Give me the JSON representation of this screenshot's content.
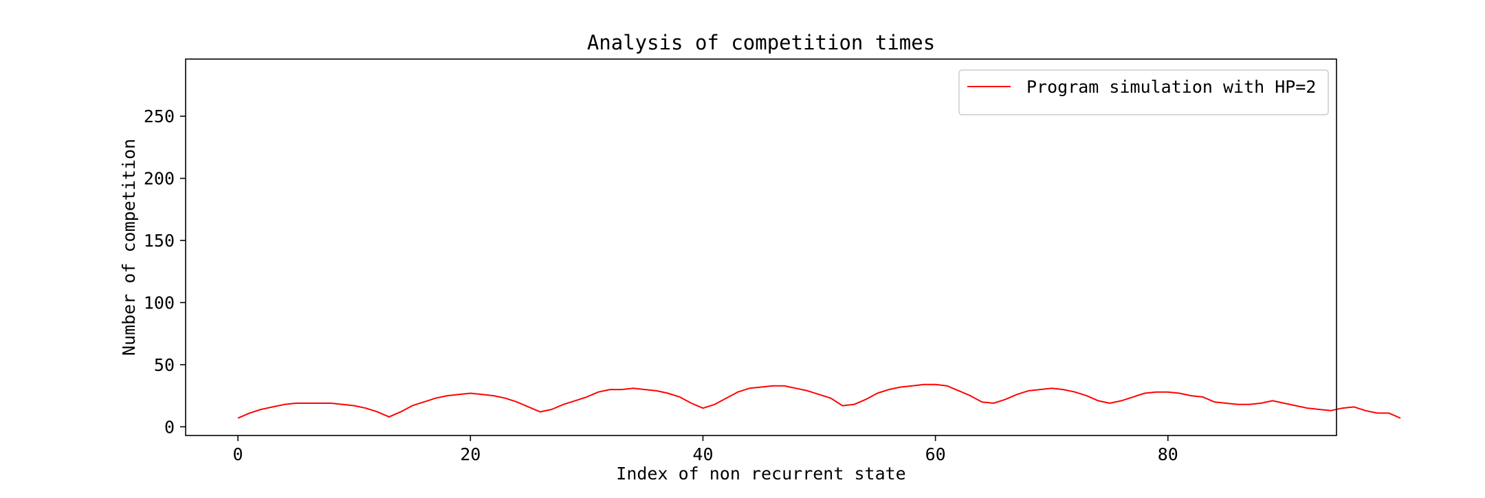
{
  "chart_data": {
    "type": "line",
    "title": "Analysis of competition times",
    "xlabel": "Index of non recurrent state",
    "ylabel": "Number of competition",
    "xlim": [
      -4.5,
      94.5
    ],
    "ylim": [
      -7,
      296
    ],
    "xticks": [
      "0",
      "20",
      "40",
      "60",
      "80"
    ],
    "yticks": [
      "0",
      "50",
      "100",
      "150",
      "200",
      "250"
    ],
    "grid": false,
    "legend_position": "upper-right",
    "series": [
      {
        "name": "Program simulation with HP=2",
        "color": "#ff0000",
        "values": [
          7,
          11,
          14,
          16,
          18,
          19,
          19,
          19,
          19,
          18,
          17,
          15,
          12,
          8,
          12,
          17,
          20,
          23,
          25,
          26,
          27,
          26,
          25,
          23,
          20,
          16,
          12,
          14,
          18,
          21,
          24,
          28,
          30,
          30,
          31,
          30,
          29,
          27,
          24,
          19,
          15,
          18,
          23,
          28,
          31,
          32,
          33,
          33,
          31,
          29,
          26,
          23,
          17,
          18,
          22,
          27,
          30,
          32,
          33,
          34,
          34,
          33,
          29,
          25,
          20,
          19,
          22,
          26,
          29,
          30,
          31,
          30,
          28,
          25,
          21,
          19,
          21,
          24,
          27,
          28,
          28,
          27,
          25,
          24,
          20,
          19,
          18,
          18,
          19,
          21,
          19,
          17,
          15,
          14,
          13,
          15,
          16,
          13,
          11,
          11,
          7
        ],
        "x_start": 0,
        "x_step": 1
      }
    ]
  }
}
